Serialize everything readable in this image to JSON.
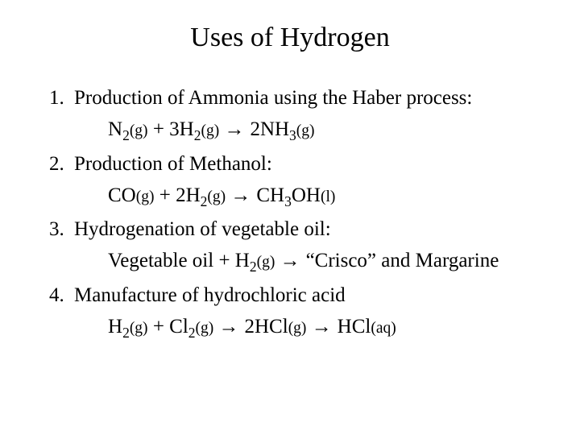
{
  "title": "Uses of Hydrogen",
  "items": [
    {
      "text": "Production of Ammonia using the Haber process:"
    },
    {
      "text": "Production of Methanol:"
    },
    {
      "text": "Hydrogenation of vegetable oil:"
    },
    {
      "text": "Manufacture of hydrochloric acid"
    }
  ],
  "eqn": {
    "n2": {
      "pre": "N",
      "sub": "2",
      "state": "(g)"
    },
    "h2a": {
      "pre": "3H",
      "sub": "2",
      "state": "(g)"
    },
    "nh3": {
      "pre": "2NH",
      "sub": "3",
      "state": "(g)"
    },
    "co": {
      "pre": "CO",
      "state": "(g)"
    },
    "h2b": {
      "pre": "2H",
      "sub": "2",
      "state": "(g)"
    },
    "ch3": {
      "pre": "CH",
      "sub": "3"
    },
    "oh": {
      "pre": "OH",
      "state": "(l)"
    },
    "veg": "Vegetable oil + H",
    "h2c": {
      "sub": "2",
      "state": "(g)"
    },
    "crisco": " “Crisco” and Margarine",
    "h2d": {
      "pre": "H",
      "sub": "2",
      "state": "(g)"
    },
    "cl2": {
      "pre": "Cl",
      "sub": "2",
      "state": "(g)"
    },
    "hclg": {
      "pre": "2HCl",
      "state": "(g)"
    },
    "hclaq": {
      "pre": "HCl",
      "state": "(aq)"
    }
  },
  "sym": {
    "plus": "  +  ",
    "arrow": " → "
  }
}
